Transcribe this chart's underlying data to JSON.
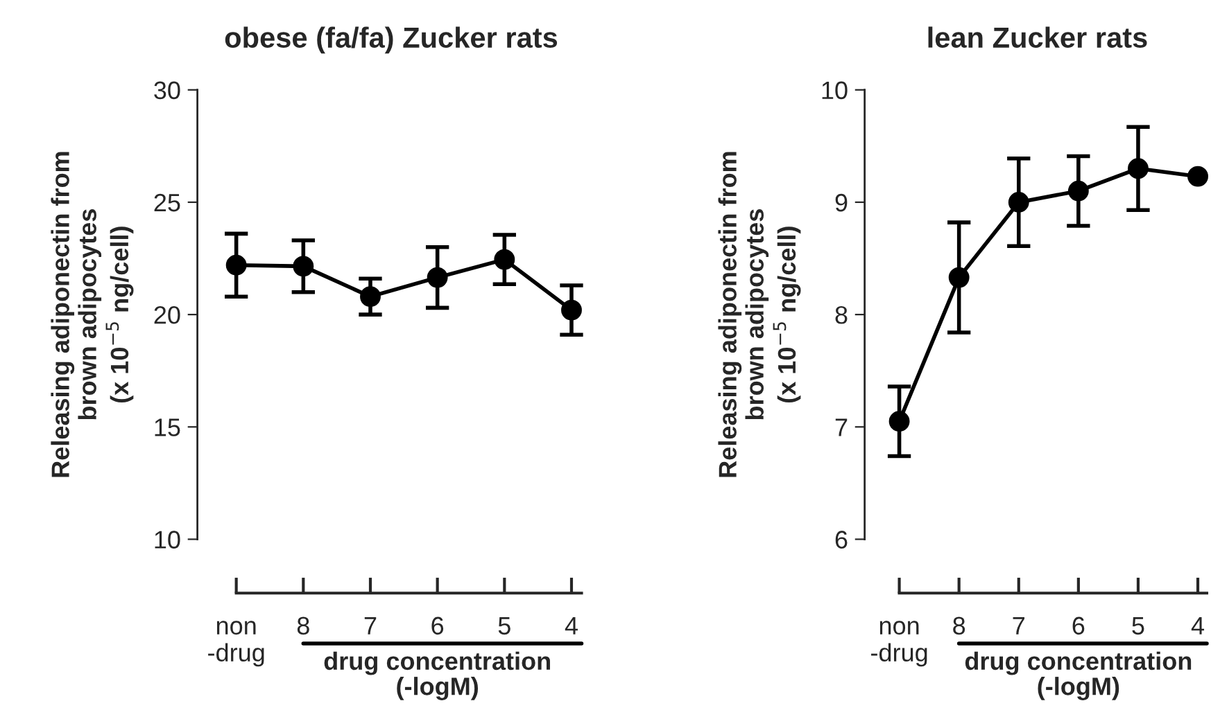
{
  "chart_data": [
    {
      "type": "line",
      "title": "obese (fa/fa) Zucker rats",
      "xlabel": "drug concentration\n(-logM)",
      "ylabel": "Releasing adiponectin from\nbrown adipocytes\n(x 10$^{−5}$ ng/cell)",
      "categories": [
        "non\n-drug",
        "8",
        "7",
        "6",
        "5",
        "4"
      ],
      "series": [
        {
          "color": "#000000",
          "values": [
            22.2,
            22.15,
            20.8,
            21.65,
            22.45,
            20.2
          ],
          "errors": [
            1.4,
            1.15,
            0.8,
            1.35,
            1.1,
            1.1
          ]
        }
      ],
      "ylim": [
        10,
        30
      ],
      "yticks": [
        10,
        15,
        20,
        25,
        30
      ],
      "marker": "circle",
      "line_style": "solid",
      "grid": false,
      "legend": false
    },
    {
      "type": "line",
      "title": "lean Zucker rats",
      "xlabel": "drug concentration\n(-logM)",
      "ylabel": "Releasing adiponectin from\nbrown adipocytes\n(x 10$^{−5}$ ng/cell)",
      "categories": [
        "non\n-drug",
        "8",
        "7",
        "6",
        "5",
        "4"
      ],
      "series": [
        {
          "color": "#000000",
          "values": [
            7.05,
            8.33,
            9.0,
            9.1,
            9.3,
            9.23
          ],
          "errors": [
            0.31,
            0.49,
            0.39,
            0.31,
            0.37,
            null
          ]
        }
      ],
      "ylim": [
        6,
        10
      ],
      "yticks": [
        6,
        7,
        8,
        9,
        10
      ],
      "marker": "circle",
      "line_style": "solid",
      "grid": false,
      "legend": false
    }
  ]
}
